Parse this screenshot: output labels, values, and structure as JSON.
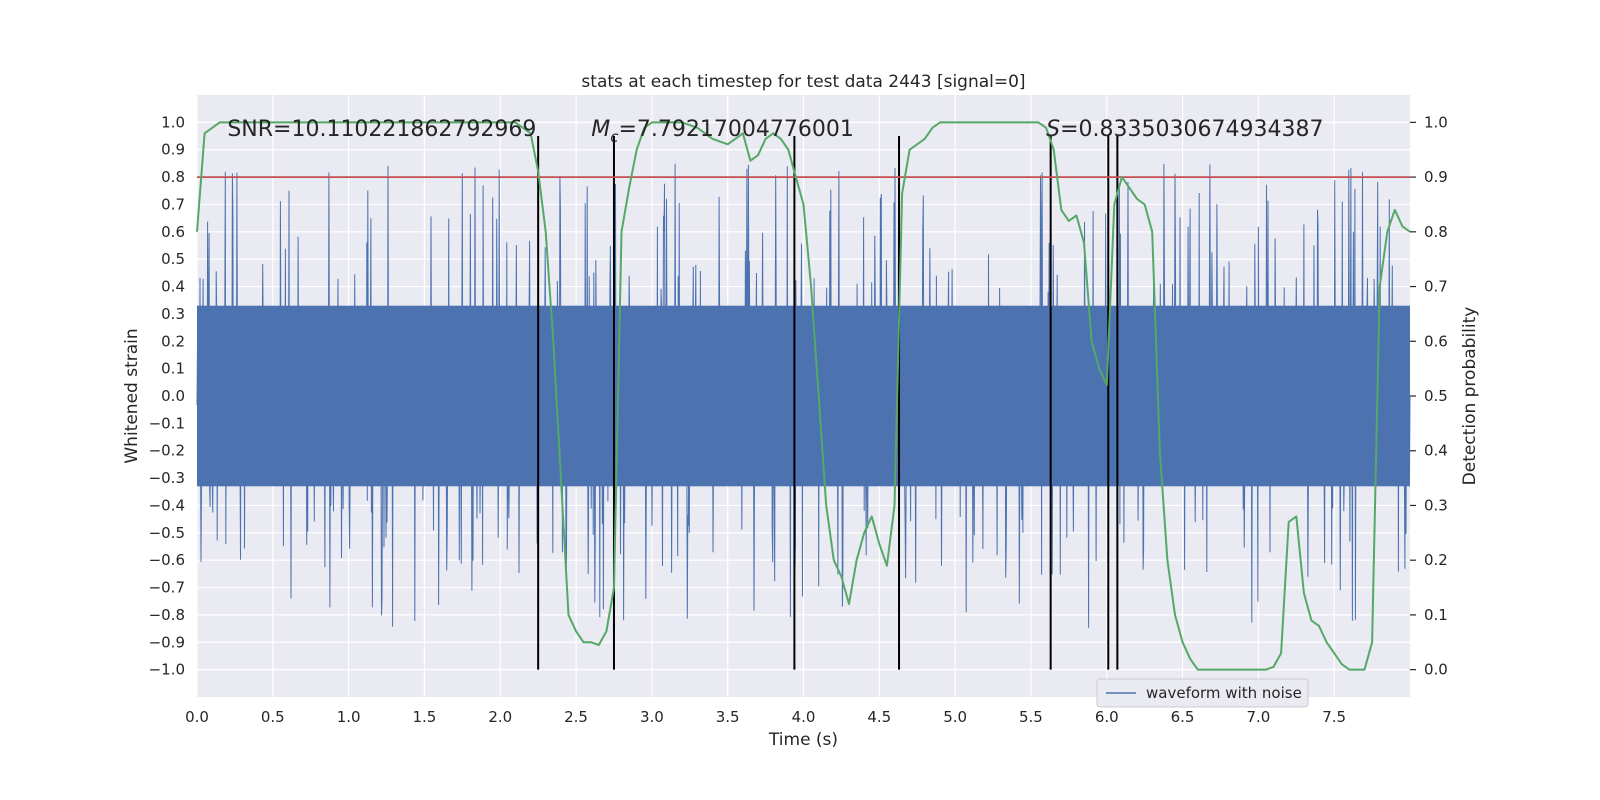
{
  "chart_data": {
    "type": "line",
    "title": "stats at each timestep for test data 2443 [signal=0]",
    "xlabel": "Time (s)",
    "ylabel": "Whitened strain",
    "y2label": "Detection probability",
    "xlim": [
      0.0,
      8.0
    ],
    "ylim": [
      -1.1,
      1.1
    ],
    "y2lim": [
      -0.05,
      1.05
    ],
    "x_ticks": [
      0.0,
      0.5,
      1.0,
      1.5,
      2.0,
      2.5,
      3.0,
      3.5,
      4.0,
      4.5,
      5.0,
      5.5,
      6.0,
      6.5,
      7.0,
      7.5
    ],
    "x_tick_labels": [
      "0.0",
      "0.5",
      "1.0",
      "1.5",
      "2.0",
      "2.5",
      "3.0",
      "3.5",
      "4.0",
      "4.5",
      "5.0",
      "5.5",
      "6.0",
      "6.5",
      "7.0",
      "7.5"
    ],
    "y_ticks": [
      1.0,
      0.9,
      0.8,
      0.7,
      0.6,
      0.5,
      0.4,
      0.3,
      0.2,
      0.1,
      0.0,
      -0.1,
      -0.2,
      -0.3,
      -0.4,
      -0.5,
      -0.6,
      -0.7,
      -0.8,
      -0.9,
      -1.0
    ],
    "y_tick_labels": [
      "1.0",
      "0.9",
      "0.8",
      "0.7",
      "0.6",
      "0.5",
      "0.4",
      "0.3",
      "0.2",
      "0.1",
      "0.0",
      "−0.1",
      "−0.2",
      "−0.3",
      "−0.4",
      "−0.5",
      "−0.6",
      "−0.7",
      "−0.8",
      "−0.9",
      "−1.0"
    ],
    "y2_ticks": [
      1.0,
      0.9,
      0.8,
      0.7,
      0.6,
      0.5,
      0.4,
      0.3,
      0.2,
      0.1,
      0.0
    ],
    "y2_tick_labels": [
      "1.0",
      "0.9",
      "0.8",
      "0.7",
      "0.6",
      "0.5",
      "0.4",
      "0.3",
      "0.2",
      "0.1",
      "0.0"
    ],
    "waveform": {
      "name": "waveform with noise",
      "color": "#4c72b0",
      "core_amplitude": 0.33,
      "spike_max": 0.85,
      "seed": 2443
    },
    "threshold": {
      "value": 0.9,
      "axis": "y2",
      "color": "#c44e52"
    },
    "event_markers": {
      "x": [
        2.25,
        2.75,
        3.94,
        4.63,
        5.63,
        6.01,
        6.07
      ],
      "range": [
        -1.0,
        0.95
      ],
      "color": "#000000"
    },
    "detection_probability": {
      "color": "#55a868",
      "axis": "y2",
      "x": [
        0.0,
        0.05,
        0.1,
        0.15,
        0.2,
        0.3,
        0.5,
        0.7,
        0.9,
        1.1,
        1.3,
        1.5,
        1.7,
        1.9,
        2.0,
        2.1,
        2.15,
        2.2,
        2.25,
        2.3,
        2.35,
        2.4,
        2.45,
        2.5,
        2.55,
        2.6,
        2.65,
        2.7,
        2.75,
        2.8,
        2.85,
        2.9,
        2.95,
        3.0,
        3.1,
        3.2,
        3.3,
        3.4,
        3.5,
        3.55,
        3.6,
        3.65,
        3.7,
        3.75,
        3.8,
        3.85,
        3.9,
        3.95,
        4.0,
        4.05,
        4.1,
        4.15,
        4.2,
        4.25,
        4.3,
        4.35,
        4.4,
        4.45,
        4.5,
        4.55,
        4.6,
        4.65,
        4.7,
        4.75,
        4.8,
        4.85,
        4.9,
        5.0,
        5.2,
        5.4,
        5.5,
        5.55,
        5.6,
        5.65,
        5.7,
        5.75,
        5.8,
        5.85,
        5.9,
        5.95,
        6.0,
        6.05,
        6.1,
        6.15,
        6.2,
        6.25,
        6.3,
        6.35,
        6.4,
        6.45,
        6.5,
        6.55,
        6.6,
        6.65,
        6.7,
        6.8,
        6.9,
        7.0,
        7.05,
        7.1,
        7.15,
        7.2,
        7.25,
        7.3,
        7.35,
        7.4,
        7.45,
        7.5,
        7.55,
        7.6,
        7.65,
        7.7,
        7.75,
        7.8,
        7.85,
        7.9,
        7.95,
        8.0
      ],
      "y": [
        0.8,
        0.98,
        0.99,
        1.0,
        1.0,
        1.0,
        1.0,
        1.0,
        1.0,
        1.0,
        1.0,
        1.0,
        1.0,
        1.0,
        1.0,
        1.0,
        0.99,
        0.98,
        0.91,
        0.8,
        0.6,
        0.35,
        0.1,
        0.07,
        0.05,
        0.05,
        0.045,
        0.07,
        0.15,
        0.8,
        0.88,
        0.95,
        0.99,
        1.0,
        1.0,
        1.0,
        0.99,
        0.97,
        0.96,
        0.97,
        0.98,
        0.93,
        0.94,
        0.97,
        0.98,
        0.97,
        0.95,
        0.9,
        0.85,
        0.7,
        0.5,
        0.3,
        0.2,
        0.17,
        0.12,
        0.2,
        0.25,
        0.28,
        0.23,
        0.19,
        0.3,
        0.87,
        0.95,
        0.96,
        0.97,
        0.99,
        1.0,
        1.0,
        1.0,
        1.0,
        1.0,
        1.0,
        0.99,
        0.95,
        0.84,
        0.82,
        0.83,
        0.78,
        0.6,
        0.55,
        0.52,
        0.85,
        0.9,
        0.88,
        0.86,
        0.85,
        0.8,
        0.4,
        0.2,
        0.1,
        0.05,
        0.02,
        0.0,
        0.0,
        0.0,
        0.0,
        0.0,
        0.0,
        0.0,
        0.005,
        0.03,
        0.27,
        0.28,
        0.14,
        0.09,
        0.08,
        0.05,
        0.03,
        0.01,
        0.0,
        0.0,
        0.0,
        0.05,
        0.7,
        0.8,
        0.84,
        0.81,
        0.8
      ]
    },
    "annotations": [
      {
        "text": "SNR=10.110221862792969",
        "x": 0.2,
        "y": 0.95
      },
      {
        "text": "M",
        "sub": "c",
        "rest": "=7.79217004776001",
        "x": 2.6,
        "y": 0.95
      },
      {
        "text": "S",
        "rest": "=0.8335030674934387",
        "x": 5.6,
        "y": 0.95
      }
    ],
    "legend": {
      "label": "waveform with noise",
      "position": "lower-right"
    },
    "grid": true
  }
}
